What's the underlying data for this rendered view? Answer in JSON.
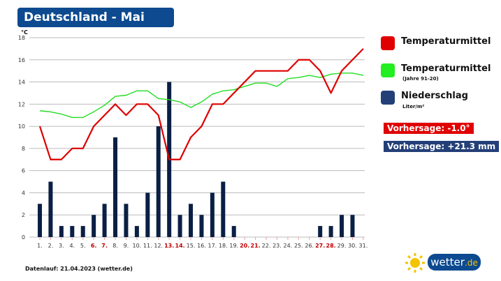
{
  "header": {
    "title": "Deutschland - Mai"
  },
  "chart_data": {
    "type": "bar+line",
    "y_unit": "°C",
    "ylim": [
      0,
      18
    ],
    "yticks": [
      0,
      2,
      4,
      6,
      8,
      10,
      12,
      14,
      16,
      18
    ],
    "grid": true,
    "categories": [
      "1.",
      "2.",
      "3.",
      "4.",
      "5.",
      "6.",
      "7.",
      "8.",
      "9.",
      "10.",
      "11.",
      "12.",
      "13.",
      "14.",
      "15.",
      "16.",
      "17.",
      "18.",
      "19.",
      "20.",
      "21.",
      "22.",
      "23.",
      "24.",
      "25.",
      "26.",
      "27.",
      "28.",
      "29.",
      "30.",
      "31."
    ],
    "weekend_days": [
      6,
      7,
      13,
      14,
      20,
      21,
      27,
      28
    ],
    "series": [
      {
        "name": "Temperaturmittel",
        "type": "line",
        "color": "#dd0000",
        "values": [
          10,
          7,
          7,
          8,
          8,
          10,
          11,
          12,
          11,
          12,
          12,
          11,
          7,
          7,
          9,
          10,
          12,
          12,
          13,
          14,
          15,
          15,
          15,
          15,
          16,
          16,
          15,
          13,
          15,
          16,
          17
        ]
      },
      {
        "name": "Temperaturmittel (Jahre 91-20)",
        "type": "line",
        "color": "#22dd22",
        "values": [
          11.4,
          11.3,
          11.1,
          10.8,
          10.8,
          11.3,
          11.9,
          12.7,
          12.8,
          13.2,
          13.2,
          12.5,
          12.4,
          12.2,
          11.7,
          12.2,
          12.9,
          13.2,
          13.3,
          13.6,
          13.9,
          13.9,
          13.6,
          14.3,
          14.4,
          14.6,
          14.4,
          14.7,
          14.8,
          14.8,
          14.6
        ]
      },
      {
        "name": "Niederschlag (Liter/m²)",
        "type": "bar",
        "color": "#0a1f44",
        "values": [
          3,
          5,
          1,
          1,
          1,
          2,
          3,
          9,
          3,
          1,
          4,
          10,
          14,
          2,
          3,
          2,
          4,
          5,
          1,
          0,
          0,
          0,
          0,
          0,
          0,
          0,
          1,
          1,
          2,
          2,
          0
        ]
      }
    ]
  },
  "legend": {
    "items": [
      {
        "label": "Temperaturmittel",
        "sub": "",
        "color": "#e00000"
      },
      {
        "label": "Temperaturmittel",
        "sub": "(Jahre 91-20)",
        "color": "#22ee22"
      },
      {
        "label": "Niederschlag",
        "sub": "Liter/m²",
        "color": "#233f78"
      }
    ],
    "forecast_temp": "Vorhersage: -1.0°",
    "forecast_rain": "Vorhersage: +21.3 mm",
    "forecast_temp_color": "#e00000",
    "forecast_rain_color": "#233f78"
  },
  "footer": {
    "datenlauf": "Datenlauf: 21.04.2023 (wetter.de)",
    "logo_text": "wetter",
    "logo_tld": ".de"
  }
}
